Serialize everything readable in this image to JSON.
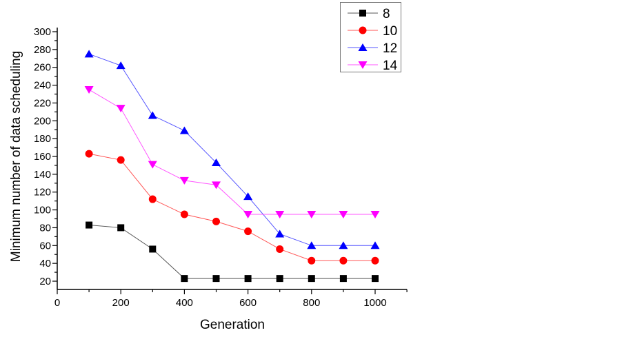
{
  "chart_data": {
    "type": "line",
    "title": "",
    "xlabel": "Generation",
    "ylabel": "Minimum number of data scheduling",
    "x": [
      100,
      200,
      300,
      400,
      500,
      600,
      700,
      800,
      900,
      1000
    ],
    "xlim": [
      0,
      1100
    ],
    "ylim": [
      10.7,
      304.6
    ],
    "xticks": [
      0,
      200,
      400,
      600,
      800,
      1000
    ],
    "yticks": [
      20,
      40,
      60,
      80,
      100,
      120,
      140,
      160,
      180,
      200,
      220,
      240,
      260,
      280,
      300
    ],
    "grid": false,
    "legend_position": "top-right",
    "series": [
      {
        "name": "8",
        "color": "#000000",
        "line_color": "#555555",
        "marker": "square",
        "values": [
          83,
          80,
          56,
          23,
          23,
          23,
          23,
          23,
          23,
          23
        ]
      },
      {
        "name": "10",
        "color": "#ff0000",
        "line_color": "#ff5555",
        "marker": "circle",
        "values": [
          163,
          156,
          112,
          95,
          87,
          76,
          56,
          43,
          43,
          43
        ]
      },
      {
        "name": "12",
        "color": "#0000ff",
        "line_color": "#5555ff",
        "marker": "triangle-up",
        "values": [
          275,
          262,
          206,
          189,
          153,
          115,
          73,
          60,
          60,
          60
        ]
      },
      {
        "name": "14",
        "color": "#ff00ff",
        "line_color": "#ff55ff",
        "marker": "triangle-down",
        "values": [
          235,
          214,
          151,
          133,
          128,
          95,
          95,
          95,
          95,
          95
        ]
      }
    ]
  }
}
